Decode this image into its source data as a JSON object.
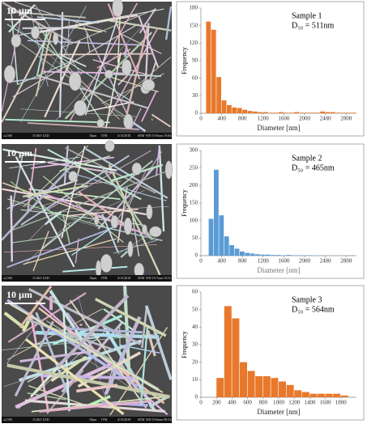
{
  "images": [
    {
      "scale_label": "10 µm",
      "footer": [
        "x2,500",
        "15.0kV LED",
        "10µm",
        "ITM",
        "4/13/2018",
        "SEM",
        "WD 19.8mm 10:04:59"
      ]
    },
    {
      "scale_label": "10 µm",
      "footer": [
        "x2,500",
        "15.0kV LED",
        "10µm",
        "ITM",
        "4/13/2018",
        "SEM",
        "WD 19.7mm 10:11:38"
      ]
    },
    {
      "scale_label": "10 µm",
      "footer": [
        "x2,500",
        "15.0kV LED",
        "10µm",
        "ITM",
        "4/13/2018",
        "SEM",
        "WD 19.6mm 09:53:52"
      ]
    }
  ],
  "chart_data": [
    {
      "type": "histogram",
      "annotations": [
        "Sample  1",
        "D₅₀ = 511nm"
      ],
      "xlabel": "Diameter [nm]",
      "ylabel": "Frequency",
      "color": "#e8792c",
      "bins": [
        100,
        200,
        300,
        400,
        500,
        600,
        700,
        800,
        900,
        1000,
        1100,
        1200,
        1300,
        1400,
        1500,
        1600,
        1700,
        1800,
        1900,
        2000,
        2100,
        2200,
        2300,
        2400,
        2500,
        2600,
        2700,
        2800,
        2900,
        3000
      ],
      "values": [
        157,
        143,
        62,
        22,
        14,
        10,
        9,
        6,
        4,
        3,
        2,
        2,
        1,
        1,
        2,
        1,
        1,
        2,
        1,
        1,
        1,
        1,
        3,
        2,
        2,
        1,
        1,
        1,
        1
      ],
      "xlim": [
        0,
        3000
      ],
      "xticks": [
        0,
        400,
        800,
        1200,
        1600,
        2000,
        2400,
        2800
      ],
      "ylim": [
        0,
        180
      ],
      "yticks": [
        0,
        30,
        60,
        90,
        120,
        150,
        180
      ]
    },
    {
      "type": "histogram",
      "annotations": [
        "Sample  2",
        "D₅₀ = 465nm"
      ],
      "xlabel": "Diameter [nm]",
      "ylabel": "Frequency",
      "color": "#5b9bd5",
      "bins": [
        150,
        250,
        350,
        450,
        550,
        650,
        750,
        850,
        950,
        1050,
        1150,
        1250,
        1350,
        1450,
        1550,
        1650,
        1750,
        1850,
        1950,
        2050,
        2150,
        2250,
        2350,
        2450,
        2550,
        2650,
        2750,
        2850,
        2950
      ],
      "values": [
        105,
        245,
        115,
        55,
        30,
        20,
        12,
        8,
        6,
        4,
        3,
        3,
        2,
        2,
        1,
        2,
        1,
        1,
        1,
        1,
        0,
        1,
        0,
        0,
        1,
        0,
        0,
        1
      ],
      "xlim": [
        0,
        3000
      ],
      "xticks": [
        0,
        400,
        800,
        1200,
        1600,
        2000,
        2400,
        2800
      ],
      "ylim": [
        0,
        300
      ],
      "yticks": [
        0,
        50,
        100,
        150,
        200,
        250,
        300
      ]
    },
    {
      "type": "histogram",
      "annotations": [
        "Sample 3",
        "D₅₀ = 564nm"
      ],
      "xlabel": "Diameter [nm]",
      "ylabel": "Frequency",
      "color": "#e8792c",
      "bins": [
        200,
        300,
        400,
        500,
        600,
        700,
        800,
        900,
        1000,
        1100,
        1200,
        1300,
        1400,
        1500,
        1600,
        1700,
        1800,
        1900
      ],
      "values": [
        11,
        52,
        45,
        20,
        15,
        12,
        12,
        11,
        9,
        7,
        4,
        3,
        2,
        2,
        2,
        2,
        1
      ],
      "xlim": [
        0,
        2000
      ],
      "xticks": [
        0,
        200,
        400,
        600,
        800,
        1000,
        1200,
        1400,
        1600,
        1800
      ],
      "ylim": [
        0,
        60
      ],
      "yticks": [
        0,
        10,
        20,
        30,
        40,
        50,
        60
      ]
    }
  ]
}
